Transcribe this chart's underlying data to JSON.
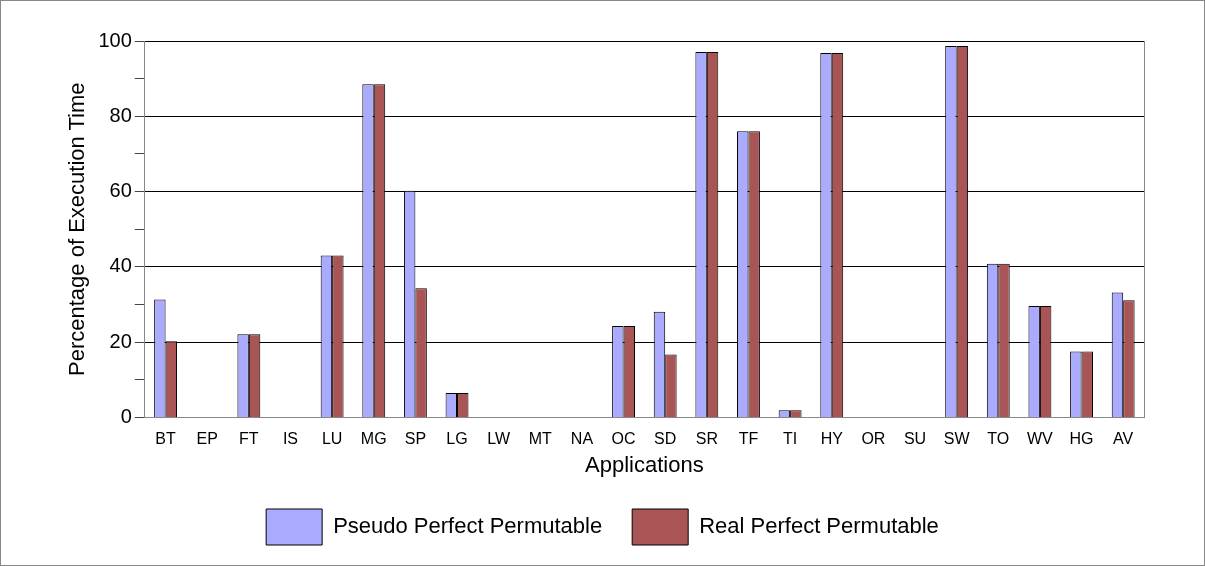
{
  "chart_data": {
    "type": "bar",
    "categories": [
      "BT",
      "EP",
      "FT",
      "IS",
      "LU",
      "MG",
      "SP",
      "LG",
      "LW",
      "MT",
      "NA",
      "OC",
      "SD",
      "SR",
      "TF",
      "TI",
      "HY",
      "OR",
      "SU",
      "SW",
      "TO",
      "WV",
      "HG",
      "AV"
    ],
    "series": [
      {
        "name": "Pseudo Perfect Permutable",
        "color": "#aaaaff",
        "values": [
          31.3,
          0,
          22.1,
          0,
          43.0,
          88.5,
          60.2,
          6.5,
          0,
          0,
          0,
          24.3,
          28.1,
          97.1,
          76.0,
          1.9,
          96.8,
          0,
          0,
          98.7,
          40.8,
          29.6,
          17.5,
          33.2
        ]
      },
      {
        "name": "Real Perfect Permutable",
        "color": "#aa5555",
        "values": [
          20.2,
          0,
          22.1,
          0,
          43.0,
          88.5,
          34.3,
          6.5,
          0,
          0,
          0,
          24.3,
          16.7,
          97.1,
          76.0,
          1.9,
          96.8,
          0,
          0,
          98.7,
          40.8,
          29.6,
          17.5,
          31.1
        ]
      }
    ],
    "xlabel": "Applications",
    "ylabel": "Percentage of Execution Time",
    "ylim": [
      0,
      100
    ],
    "yticks": [
      0,
      {
        "value": 10,
        "label": null
      },
      20,
      {
        "value": 30,
        "label": null
      },
      40,
      {
        "value": 50,
        "label": null
      },
      60,
      {
        "value": 70,
        "label": null
      },
      80,
      {
        "value": 90,
        "label": null
      },
      100
    ],
    "grid": "y",
    "legend": "bottom"
  }
}
